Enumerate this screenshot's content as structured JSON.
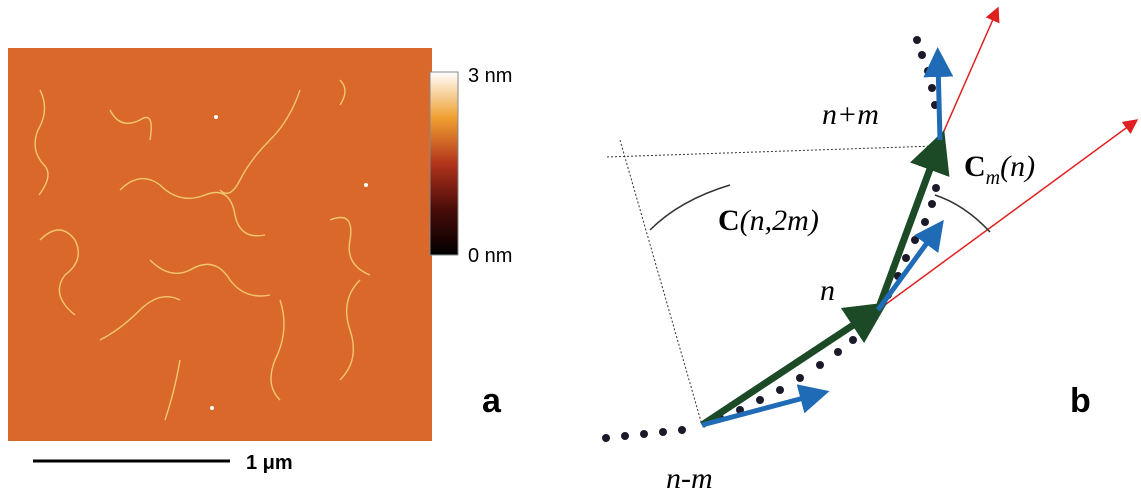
{
  "panel_a": {
    "colorbar_max_label": "3 nm",
    "colorbar_min_label": "0 nm",
    "scale_bar_label": "1 μm",
    "panel_label": "a"
  },
  "panel_b": {
    "label_top": "n+m",
    "label_cm": {
      "main": "C",
      "sub": "m",
      "rest": "(n)"
    },
    "label_c2m": {
      "main": "C",
      "rest": "(n,2m)"
    },
    "label_mid": "n",
    "label_bottom": "n-m",
    "panel_label": "b"
  }
}
